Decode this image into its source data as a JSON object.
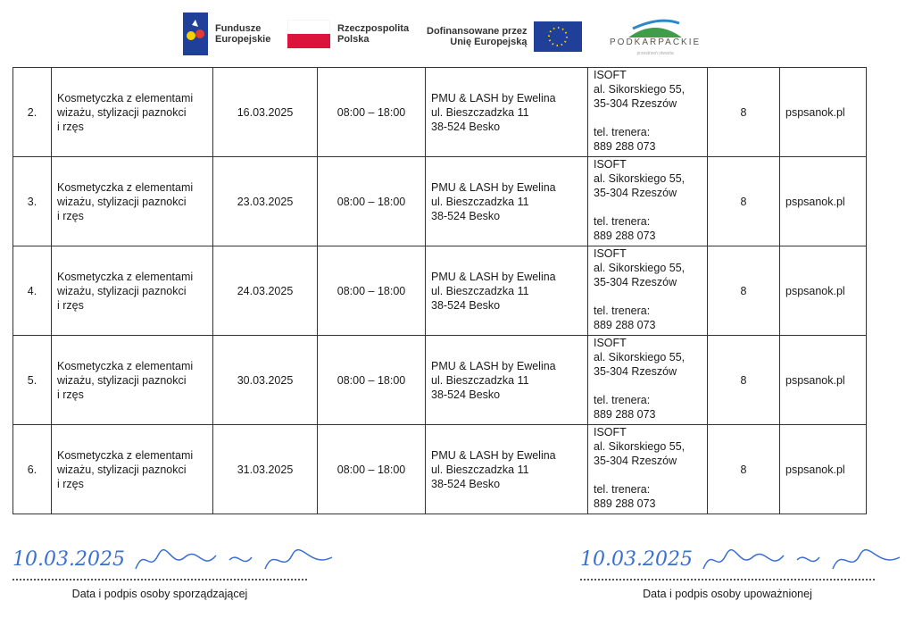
{
  "header": {
    "logos": [
      {
        "name": "fundusze-europejskie",
        "text": [
          "Fundusze",
          "Europejskie"
        ]
      },
      {
        "name": "rzeczpospolita-polska",
        "text": [
          "Rzeczpospolita",
          "Polska"
        ]
      },
      {
        "name": "unia-europejska",
        "text": [
          "Dofinansowane przez",
          "Unię Europejską"
        ]
      },
      {
        "name": "podkarpackie",
        "text": [
          "PODKARPACKIE",
          "przestrzeń otwarta"
        ]
      }
    ]
  },
  "table": {
    "rows": [
      {
        "no": "2.",
        "name": [
          "Kosmetyczka z elementami",
          "wizażu, stylizacji paznokci",
          "i rzęs"
        ],
        "date": "16.03.2025",
        "time": "08:00 – 18:00",
        "place": [
          "PMU & LASH by Ewelina",
          "ul. Bieszczadzka 11",
          "38-524 Besko"
        ],
        "org": [
          "ISOFT",
          "al. Sikorskiego 55,",
          "35-304 Rzeszów",
          "",
          "tel. trenera:",
          "889 288 073"
        ],
        "count": "8",
        "site": "pspsanok.pl"
      },
      {
        "no": "3.",
        "name": [
          "Kosmetyczka z elementami",
          "wizażu, stylizacji paznokci",
          "i rzęs"
        ],
        "date": "23.03.2025",
        "time": "08:00 – 18:00",
        "place": [
          "PMU & LASH by Ewelina",
          "ul. Bieszczadzka 11",
          "38-524 Besko"
        ],
        "org": [
          "ISOFT",
          "al. Sikorskiego 55,",
          "35-304 Rzeszów",
          "",
          "tel. trenera:",
          "889 288 073"
        ],
        "count": "8",
        "site": "pspsanok.pl"
      },
      {
        "no": "4.",
        "name": [
          "Kosmetyczka z elementami",
          "wizażu, stylizacji paznokci",
          "i rzęs"
        ],
        "date": "24.03.2025",
        "time": "08:00 – 18:00",
        "place": [
          "PMU & LASH by Ewelina",
          "ul. Bieszczadzka 11",
          "38-524 Besko"
        ],
        "org": [
          "ISOFT",
          "al. Sikorskiego 55,",
          "35-304 Rzeszów",
          "",
          "tel. trenera:",
          "889 288 073"
        ],
        "count": "8",
        "site": "pspsanok.pl"
      },
      {
        "no": "5.",
        "name": [
          "Kosmetyczka z elementami",
          "wizażu, stylizacji paznokci",
          "i rzęs"
        ],
        "date": "30.03.2025",
        "time": "08:00 – 18:00",
        "place": [
          "PMU & LASH by Ewelina",
          "ul. Bieszczadzka 11",
          "38-524 Besko"
        ],
        "org": [
          "ISOFT",
          "al. Sikorskiego 55,",
          "35-304 Rzeszów",
          "",
          "tel. trenera:",
          "889 288 073"
        ],
        "count": "8",
        "site": "pspsanok.pl"
      },
      {
        "no": "6.",
        "name": [
          "Kosmetyczka z elementami",
          "wizażu, stylizacji paznokci",
          "i rzęs"
        ],
        "date": "31.03.2025",
        "time": "08:00 – 18:00",
        "place": [
          "PMU & LASH by Ewelina",
          "ul. Bieszczadzka 11",
          "38-524 Besko"
        ],
        "org": [
          "ISOFT",
          "al. Sikorskiego 55,",
          "35-304 Rzeszów",
          "",
          "tel. trenera:",
          "889 288 073"
        ],
        "count": "8",
        "site": "pspsanok.pl"
      }
    ]
  },
  "signatures": [
    {
      "date": "10.03.2025",
      "caption": "Data i podpis osoby sporządzającej"
    },
    {
      "date": "10.03.2025",
      "caption": "Data i podpis osoby upoważnionej"
    }
  ],
  "colors": {
    "ink": "#3a6fd0",
    "eu_blue": "#1f3f99",
    "pl_red": "#dc143c"
  }
}
